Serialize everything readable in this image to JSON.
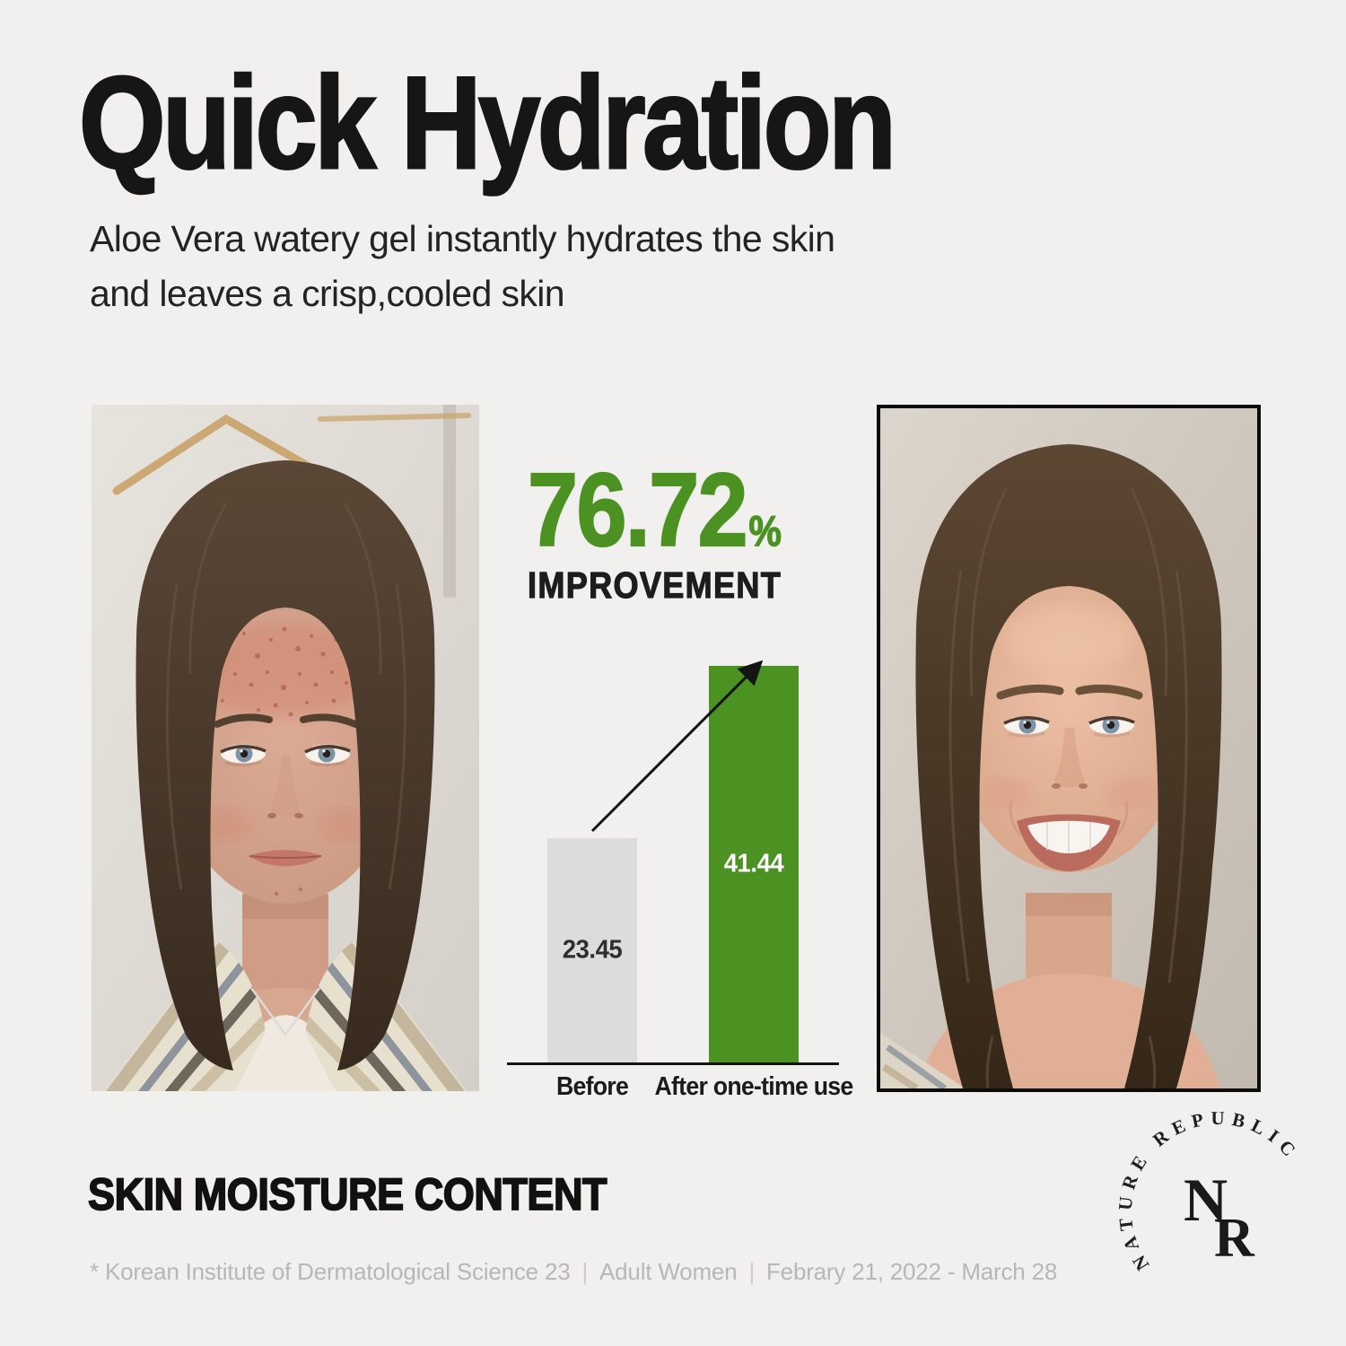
{
  "header": {
    "title": "Quick Hydration",
    "subtitle_line1": "Aloe Vera watery gel instantly hydrates the skin",
    "subtitle_line2": "and leaves a crisp,cooled skin"
  },
  "stat": {
    "value": "76.72",
    "percent_sign": "%",
    "label": "IMPROVEMENT"
  },
  "chart_data": {
    "type": "bar",
    "title": "SKIN MOISTURE CONTENT",
    "categories": [
      "Before",
      "After one-time use"
    ],
    "values": [
      23.45,
      41.44
    ],
    "display_values": [
      "23.45",
      "41.44"
    ],
    "improvement_percent": 76.72,
    "bar_colors": [
      "#dcdcda",
      "#4b9222"
    ],
    "value_label_colors": [
      "#2e2e2c",
      "#ffffff"
    ],
    "ylim": [
      0,
      45
    ],
    "grid": false,
    "baseline_axis": true,
    "legend": "none",
    "annotation": "arrow rising from top of Before bar to top of After bar"
  },
  "section": {
    "title": "SKIN MOISTURE CONTENT"
  },
  "footnote": {
    "source": "* Korean Institute of Dermatological Science 23",
    "separator": "|",
    "population": "Adult Women",
    "period": "Febrary 21, 2022 - March 28"
  },
  "logo": {
    "arc_text": "NATURE REPUBLIC",
    "monogram_top": "N",
    "monogram_bottom": "R"
  },
  "photos": {
    "before": {
      "label": "before-photo",
      "description": "woman facing camera, neutral expression, redness and blemishes on forehead, plaid scarf, thin necklace, hanger in background"
    },
    "after": {
      "label": "after-photo",
      "description": "same woman smiling with clear hydrated skin, loose wavy hair, gold earring, thin black frame"
    }
  },
  "colors": {
    "background": "#f1f0ee",
    "accent_green": "#4b9222",
    "bar_gray": "#dcdcda",
    "headline": "#161615",
    "footnote_gray": "#b9b7b4",
    "after_frame": "#0c0c0c"
  }
}
